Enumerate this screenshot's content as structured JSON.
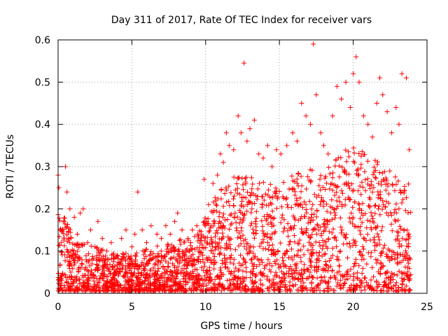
{
  "chart_data": {
    "type": "scatter",
    "title": "Day 311 of 2017, Rate Of TEC Index for receiver vars",
    "xlabel": "GPS time / hours",
    "ylabel": "ROTI / TECUs",
    "xlim": [
      0,
      25
    ],
    "ylim": [
      0,
      0.6
    ],
    "xticks": [
      0,
      5,
      10,
      15,
      20,
      25
    ],
    "yticks": [
      0,
      0.1,
      0.2,
      0.3,
      0.4,
      0.5,
      0.6
    ],
    "xtick_labels": [
      "0",
      "5",
      "10",
      "15",
      "20",
      "25"
    ],
    "ytick_labels": [
      "0",
      "0.1",
      "0.2",
      "0.3",
      "0.4",
      "0.5",
      "0.6"
    ],
    "grid": true,
    "marker": "plus",
    "series_color": "#ff0000",
    "series": [
      {
        "name": "ROTI",
        "points": [
          [
            0.0,
            0.28
          ],
          [
            0.05,
            0.25
          ],
          [
            0.1,
            0.02
          ],
          [
            0.3,
            0.15
          ],
          [
            0.5,
            0.3
          ],
          [
            0.6,
            0.24
          ],
          [
            0.8,
            0.2
          ],
          [
            1.1,
            0.18
          ],
          [
            1.3,
            0.14
          ],
          [
            1.5,
            0.19
          ],
          [
            1.7,
            0.2
          ],
          [
            2.0,
            0.12
          ],
          [
            2.2,
            0.15
          ],
          [
            2.5,
            0.11
          ],
          [
            2.7,
            0.17
          ],
          [
            3.0,
            0.13
          ],
          [
            3.3,
            0.1
          ],
          [
            3.6,
            0.12
          ],
          [
            4.0,
            0.09
          ],
          [
            4.3,
            0.13
          ],
          [
            4.6,
            0.15
          ],
          [
            5.0,
            0.11
          ],
          [
            5.2,
            0.14
          ],
          [
            5.4,
            0.24
          ],
          [
            5.7,
            0.15
          ],
          [
            6.0,
            0.12
          ],
          [
            6.3,
            0.16
          ],
          [
            6.7,
            0.14
          ],
          [
            7.0,
            0.13
          ],
          [
            7.3,
            0.16
          ],
          [
            7.6,
            0.14
          ],
          [
            7.9,
            0.17
          ],
          [
            8.1,
            0.19
          ],
          [
            8.4,
            0.15
          ],
          [
            8.8,
            0.13
          ],
          [
            9.1,
            0.15
          ],
          [
            9.4,
            0.16
          ],
          [
            9.7,
            0.14
          ],
          [
            9.9,
            0.27
          ],
          [
            10.2,
            0.21
          ],
          [
            10.5,
            0.26
          ],
          [
            10.8,
            0.28
          ],
          [
            11.0,
            0.33
          ],
          [
            11.2,
            0.31
          ],
          [
            11.4,
            0.38
          ],
          [
            11.6,
            0.35
          ],
          [
            11.9,
            0.34
          ],
          [
            12.2,
            0.42
          ],
          [
            12.4,
            0.38
          ],
          [
            12.6,
            0.545
          ],
          [
            12.8,
            0.36
          ],
          [
            13.0,
            0.39
          ],
          [
            13.3,
            0.41
          ],
          [
            13.6,
            0.33
          ],
          [
            13.9,
            0.32
          ],
          [
            14.2,
            0.35
          ],
          [
            14.5,
            0.3
          ],
          [
            14.8,
            0.34
          ],
          [
            15.1,
            0.33
          ],
          [
            15.5,
            0.35
          ],
          [
            15.9,
            0.38
          ],
          [
            16.2,
            0.36
          ],
          [
            16.5,
            0.45
          ],
          [
            16.8,
            0.42
          ],
          [
            17.1,
            0.4
          ],
          [
            17.3,
            0.59
          ],
          [
            17.5,
            0.47
          ],
          [
            17.8,
            0.38
          ],
          [
            18.0,
            0.35
          ],
          [
            18.3,
            0.33
          ],
          [
            18.6,
            0.42
          ],
          [
            18.9,
            0.49
          ],
          [
            19.2,
            0.46
          ],
          [
            19.5,
            0.5
          ],
          [
            19.8,
            0.44
          ],
          [
            20.0,
            0.52
          ],
          [
            20.2,
            0.56
          ],
          [
            20.4,
            0.5
          ],
          [
            20.7,
            0.42
          ],
          [
            21.0,
            0.4
          ],
          [
            21.3,
            0.37
          ],
          [
            21.6,
            0.45
          ],
          [
            21.8,
            0.51
          ],
          [
            22.0,
            0.47
          ],
          [
            22.3,
            0.43
          ],
          [
            22.6,
            0.38
          ],
          [
            22.9,
            0.44
          ],
          [
            23.1,
            0.4
          ],
          [
            23.3,
            0.52
          ],
          [
            23.6,
            0.51
          ],
          [
            23.8,
            0.34
          ]
        ]
      }
    ],
    "envelope_note": "dense band",
    "density_profile": {
      "hours": [
        0,
        1,
        2,
        3,
        4,
        5,
        6,
        7,
        8,
        9,
        10,
        11,
        12,
        13,
        14,
        15,
        16,
        17,
        18,
        19,
        20,
        21,
        22,
        23,
        24
      ],
      "typical_max": [
        0.2,
        0.14,
        0.11,
        0.1,
        0.09,
        0.09,
        0.1,
        0.11,
        0.12,
        0.13,
        0.18,
        0.25,
        0.28,
        0.27,
        0.26,
        0.25,
        0.28,
        0.3,
        0.28,
        0.32,
        0.35,
        0.32,
        0.3,
        0.28,
        0.25
      ]
    }
  }
}
